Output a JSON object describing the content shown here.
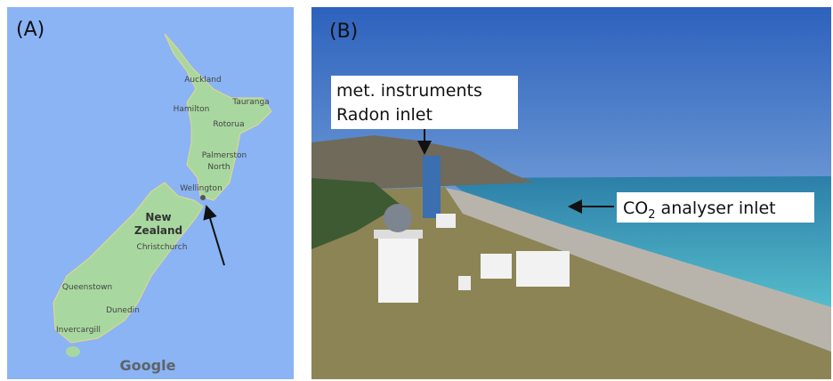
{
  "panels": [
    {
      "label": "(A)",
      "places": [
        "Auckland",
        "Tauranga",
        "Hamilton",
        "Rotorua",
        [
          "Palmerston",
          "North"
        ],
        "Wellington",
        [
          "New",
          "Zealand"
        ],
        "Christchurch",
        "Queenstown",
        "Dunedin",
        "Invercargill"
      ],
      "attribution": "Google"
    },
    {
      "label": "(B)",
      "annotations": [
        {
          "lines": [
            "met. instruments",
            "Radon inlet"
          ]
        },
        {
          "text": "CO",
          "subscript": "2",
          "suffix": " analyser inlet"
        }
      ]
    }
  ]
}
